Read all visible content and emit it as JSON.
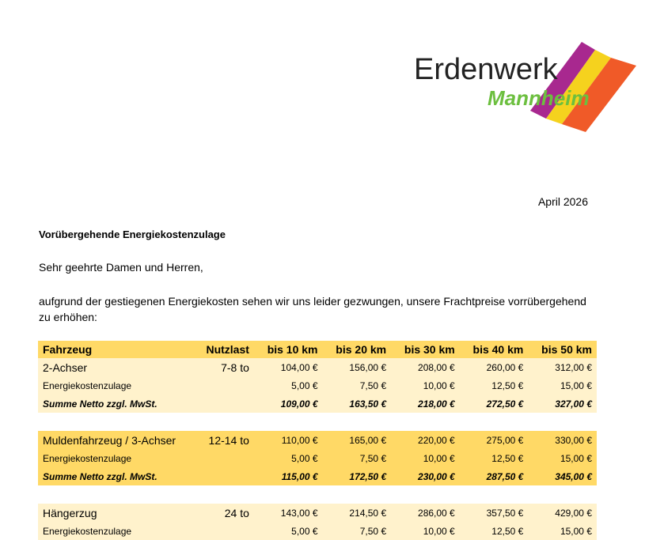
{
  "logo": {
    "text1": "Erdenwerk",
    "text2": "Mannheim",
    "colors": [
      "#A8288F",
      "#F5D21E",
      "#F05A28"
    ],
    "green": "#6CBF3F"
  },
  "date": "April 2026",
  "subject": "Vorübergehende Energiekostenzulage",
  "greeting": "Sehr geehrte Damen und Herren,",
  "body": "aufgrund der gestiegenen Energiekosten sehen wir uns leider gezwungen, unsere Frachtpreise vorrübergehend zu erhöhen:",
  "table": {
    "headers": [
      "Fahrzeug",
      "Nutzlast",
      "bis 10 km",
      "bis 20 km",
      "bis 30 km",
      "bis 40 km",
      "bis 50 km"
    ],
    "groups": [
      {
        "vehicle": "2-Achser",
        "load": "7-8 to",
        "base": [
          "104,00 €",
          "156,00 €",
          "208,00 €",
          "260,00 €",
          "312,00 €"
        ],
        "surcharge_label": "Energiekostenzulage",
        "surcharge": [
          "5,00 €",
          "7,50 €",
          "10,00 €",
          "12,50 €",
          "15,00 €"
        ],
        "sum_label": "Summe Netto zzgl. MwSt.",
        "sum": [
          "109,00 €",
          "163,50 €",
          "218,00 €",
          "272,50 €",
          "327,00 €"
        ]
      },
      {
        "vehicle": "Muldenfahrzeug / 3-Achser",
        "load": "12-14 to",
        "base": [
          "110,00 €",
          "165,00 €",
          "220,00 €",
          "275,00 €",
          "330,00 €"
        ],
        "surcharge_label": "Energiekostenzulage",
        "surcharge": [
          "5,00 €",
          "7,50 €",
          "10,00 €",
          "12,50 €",
          "15,00 €"
        ],
        "sum_label": "Summe Netto zzgl. MwSt.",
        "sum": [
          "115,00 €",
          "172,50 €",
          "230,00 €",
          "287,50 €",
          "345,00 €"
        ]
      },
      {
        "vehicle": "Hängerzug",
        "load": "24 to",
        "base": [
          "143,00 €",
          "214,50 €",
          "286,00 €",
          "357,50 €",
          "429,00 €"
        ],
        "surcharge_label": "Energiekostenzulage",
        "surcharge": [
          "5,00 €",
          "7,50 €",
          "10,00 €",
          "12,50 €",
          "15,00 €"
        ]
      }
    ]
  }
}
